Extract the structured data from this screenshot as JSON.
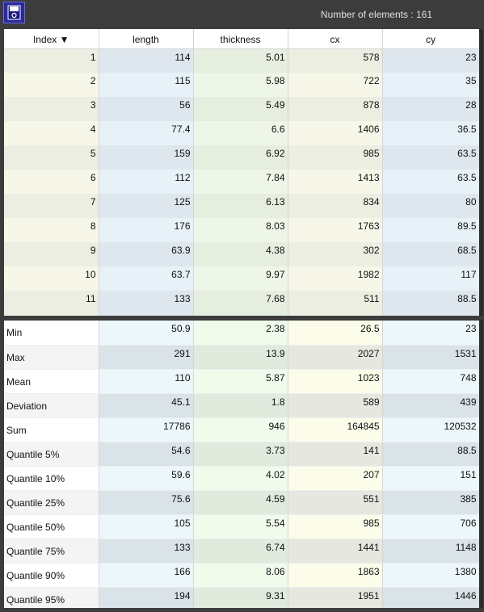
{
  "toolbar": {
    "count_label": "Number of elements : 161"
  },
  "table": {
    "columns": [
      "Index ▼",
      "length",
      "thickness",
      "cx",
      "cy"
    ],
    "rows": [
      [
        "1",
        "114",
        "5.01",
        "578",
        "23"
      ],
      [
        "2",
        "115",
        "5.98",
        "722",
        "35"
      ],
      [
        "3",
        "56",
        "5.49",
        "878",
        "28"
      ],
      [
        "4",
        "77.4",
        "6.6",
        "1406",
        "36.5"
      ],
      [
        "5",
        "159",
        "6.92",
        "985",
        "63.5"
      ],
      [
        "6",
        "112",
        "7.84",
        "1413",
        "63.5"
      ],
      [
        "7",
        "125",
        "6.13",
        "834",
        "80"
      ],
      [
        "8",
        "176",
        "8.03",
        "1763",
        "89.5"
      ],
      [
        "9",
        "63.9",
        "4.38",
        "302",
        "68.5"
      ],
      [
        "10",
        "63.7",
        "9.97",
        "1982",
        "117"
      ],
      [
        "11",
        "133",
        "7.68",
        "511",
        "88.5"
      ],
      [
        "",
        "",
        "",
        "",
        ""
      ]
    ]
  },
  "stats": {
    "rows": [
      [
        "Min",
        "50.9",
        "2.38",
        "26.5",
        "23"
      ],
      [
        "Max",
        "291",
        "13.9",
        "2027",
        "1531"
      ],
      [
        "Mean",
        "110",
        "5.87",
        "1023",
        "748"
      ],
      [
        "Deviation",
        "45.1",
        "1.8",
        "589",
        "439"
      ],
      [
        "Sum",
        "17786",
        "946",
        "164845",
        "120532"
      ],
      [
        "Quantile 5%",
        "54.6",
        "3.73",
        "141",
        "88.5"
      ],
      [
        "Quantile 10%",
        "59.6",
        "4.02",
        "207",
        "151"
      ],
      [
        "Quantile 25%",
        "75.6",
        "4.59",
        "551",
        "385"
      ],
      [
        "Quantile 50%",
        "105",
        "5.54",
        "985",
        "706"
      ],
      [
        "Quantile 75%",
        "133",
        "6.74",
        "1441",
        "1148"
      ],
      [
        "Quantile 90%",
        "166",
        "8.06",
        "1863",
        "1380"
      ],
      [
        "Quantile 95%",
        "194",
        "9.31",
        "1951",
        "1446"
      ]
    ]
  },
  "colors": {
    "top_even": [
      "#eceee2",
      "#dfe7ee",
      "#e6eedf",
      "#eceee2",
      "#dfe7ee"
    ],
    "top_odd": [
      "#f7f7e9",
      "#e7f1f8",
      "#eef6e8",
      "#f7f7e9",
      "#e7f1f8"
    ],
    "bot_even": [
      "#ffffff",
      "#ecf7fb",
      "#f0fbec",
      "#fcfcea",
      "#ecf7fb"
    ],
    "bot_odd": [
      "#f4f4f4",
      "#d9e3e8",
      "#e0eadd",
      "#e6e7df",
      "#d9e3e8"
    ]
  }
}
